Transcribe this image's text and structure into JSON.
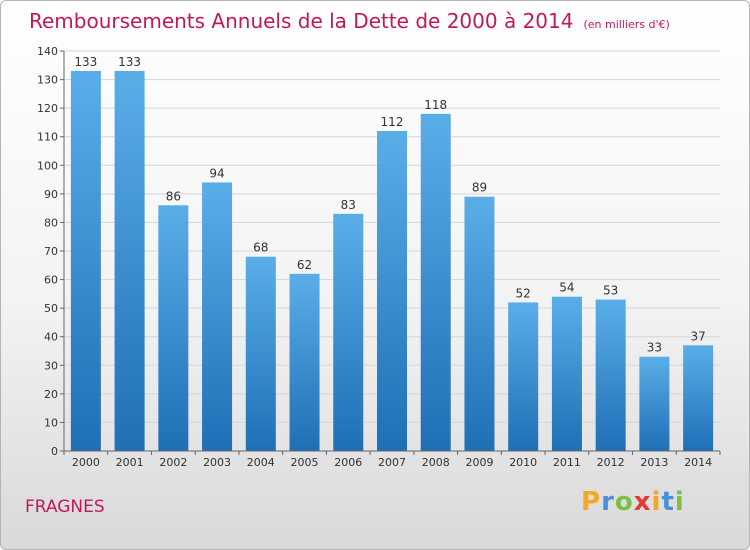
{
  "title": "Remboursements Annuels de la Dette de 2000 à 2014",
  "unit": "(en milliers d'€)",
  "place": "FRAGNES",
  "logo": {
    "letters": [
      "P",
      "r",
      "o",
      "x",
      "i",
      "t",
      "i"
    ],
    "colors": [
      "#f5a623",
      "#4a90d9",
      "#7cc043",
      "#e53935",
      "#f5a623",
      "#4a90d9",
      "#7cc043"
    ]
  },
  "colors": {
    "bar_top": "#5aaee8",
    "bar_bottom": "#1f6fb5",
    "title": "#c2185b"
  },
  "chart_data": {
    "type": "bar",
    "title": "Remboursements Annuels de la Dette de 2000 à 2014",
    "categories": [
      "2000",
      "2001",
      "2002",
      "2003",
      "2004",
      "2005",
      "2006",
      "2007",
      "2008",
      "2009",
      "2010",
      "2011",
      "2012",
      "2013",
      "2014"
    ],
    "values": [
      133,
      133,
      86,
      94,
      68,
      62,
      83,
      112,
      118,
      89,
      52,
      54,
      53,
      33,
      37
    ],
    "ylim": [
      0,
      140
    ],
    "yticks": [
      0,
      10,
      20,
      30,
      40,
      50,
      60,
      70,
      80,
      90,
      100,
      110,
      120,
      130,
      140
    ],
    "grid": true,
    "xlabel": "",
    "ylabel": ""
  }
}
